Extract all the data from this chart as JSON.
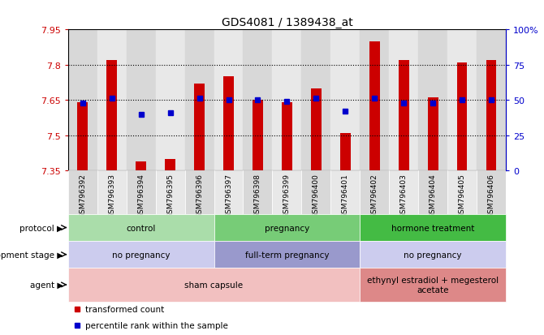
{
  "title": "GDS4081 / 1389438_at",
  "samples": [
    "GSM796392",
    "GSM796393",
    "GSM796394",
    "GSM796395",
    "GSM796396",
    "GSM796397",
    "GSM796398",
    "GSM796399",
    "GSM796400",
    "GSM796401",
    "GSM796402",
    "GSM796403",
    "GSM796404",
    "GSM796405",
    "GSM796406"
  ],
  "bar_values": [
    7.64,
    7.82,
    7.39,
    7.4,
    7.72,
    7.75,
    7.65,
    7.64,
    7.7,
    7.51,
    7.9,
    7.82,
    7.66,
    7.81,
    7.82
  ],
  "percentile_values": [
    48,
    51,
    40,
    41,
    51,
    50,
    50,
    49,
    51,
    42,
    51,
    48,
    48,
    50,
    50
  ],
  "bar_color": "#cc0000",
  "percentile_color": "#0000cc",
  "ymin": 7.35,
  "ymax": 7.95,
  "yticks": [
    7.35,
    7.5,
    7.65,
    7.8,
    7.95
  ],
  "ytick_labels": [
    "7.35",
    "7.5",
    "7.65",
    "7.8",
    "7.95"
  ],
  "right_yticks": [
    0,
    25,
    50,
    75,
    100
  ],
  "right_ytick_labels": [
    "0",
    "25",
    "50",
    "75",
    "100%"
  ],
  "grid_values": [
    7.5,
    7.65,
    7.8
  ],
  "protocol_groups": [
    {
      "label": "control",
      "start": 0,
      "end": 4,
      "color": "#aaddaa"
    },
    {
      "label": "pregnancy",
      "start": 5,
      "end": 9,
      "color": "#77cc77"
    },
    {
      "label": "hormone treatment",
      "start": 10,
      "end": 14,
      "color": "#44bb44"
    }
  ],
  "dev_stage_groups": [
    {
      "label": "no pregnancy",
      "start": 0,
      "end": 4,
      "color": "#ccccee"
    },
    {
      "label": "full-term pregnancy",
      "start": 5,
      "end": 9,
      "color": "#9999cc"
    },
    {
      "label": "no pregnancy",
      "start": 10,
      "end": 14,
      "color": "#ccccee"
    }
  ],
  "agent_groups": [
    {
      "label": "sham capsule",
      "start": 0,
      "end": 9,
      "color": "#f2c0c0"
    },
    {
      "label": "ethynyl estradiol + megesterol\nacetate",
      "start": 10,
      "end": 14,
      "color": "#dd8888"
    }
  ],
  "row_labels": [
    "protocol",
    "development stage",
    "agent"
  ],
  "background_color": "#ffffff",
  "plot_bg_color": "#ffffff",
  "col_bg_even": "#d8d8d8",
  "col_bg_odd": "#e8e8e8",
  "ticklabel_color_left": "#cc0000",
  "ticklabel_color_right": "#0000cc"
}
